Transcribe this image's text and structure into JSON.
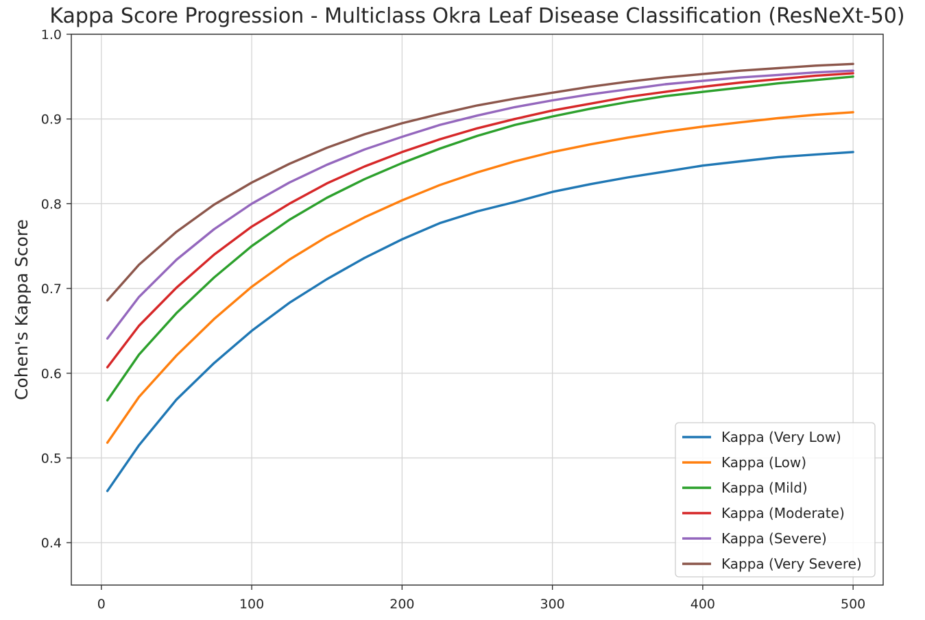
{
  "chart_data": {
    "type": "line",
    "title": "Kappa Score Progression - Multiclass Okra Leaf Disease Classification (ResNeXt-50)",
    "xlabel": "",
    "ylabel": "Cohen's Kappa Score",
    "xlim": [
      -20,
      520
    ],
    "ylim": [
      0.35,
      1.0
    ],
    "xticks": [
      0,
      100,
      200,
      300,
      400,
      500
    ],
    "xtick_labels": [
      "0",
      "100",
      "200",
      "300",
      "400",
      "500"
    ],
    "yticks": [
      0.4,
      0.5,
      0.6,
      0.7,
      0.8,
      0.9,
      1.0
    ],
    "ytick_labels": [
      "0.4",
      "0.5",
      "0.6",
      "0.7",
      "0.8",
      "0.9",
      "1.0"
    ],
    "grid": true,
    "legend_position": "lower-right",
    "x": [
      4,
      25,
      50,
      75,
      100,
      125,
      150,
      175,
      200,
      225,
      250,
      275,
      300,
      325,
      350,
      375,
      400,
      425,
      450,
      475,
      500
    ],
    "series": [
      {
        "name": "Kappa (Very Low)",
        "color": "#1f77b4",
        "values": [
          0.461,
          0.515,
          0.569,
          0.612,
          0.65,
          0.683,
          0.711,
          0.736,
          0.758,
          0.777,
          0.791,
          0.802,
          0.814,
          0.823,
          0.831,
          0.838,
          0.845,
          0.85,
          0.855,
          0.858,
          0.861
        ]
      },
      {
        "name": "Kappa (Low)",
        "color": "#ff7f0e",
        "values": [
          0.518,
          0.572,
          0.621,
          0.664,
          0.702,
          0.734,
          0.761,
          0.784,
          0.804,
          0.822,
          0.837,
          0.85,
          0.861,
          0.87,
          0.878,
          0.885,
          0.891,
          0.896,
          0.901,
          0.905,
          0.908
        ]
      },
      {
        "name": "Kappa (Mild)",
        "color": "#2ca02c",
        "values": [
          0.568,
          0.622,
          0.671,
          0.713,
          0.75,
          0.781,
          0.807,
          0.829,
          0.848,
          0.865,
          0.88,
          0.893,
          0.903,
          0.912,
          0.92,
          0.927,
          0.932,
          0.937,
          0.942,
          0.946,
          0.95
        ]
      },
      {
        "name": "Kappa (Moderate)",
        "color": "#d62728",
        "values": [
          0.607,
          0.656,
          0.701,
          0.74,
          0.773,
          0.8,
          0.824,
          0.844,
          0.861,
          0.876,
          0.889,
          0.9,
          0.91,
          0.918,
          0.926,
          0.932,
          0.938,
          0.943,
          0.947,
          0.951,
          0.954
        ]
      },
      {
        "name": "Kappa (Severe)",
        "color": "#9467bd",
        "values": [
          0.641,
          0.69,
          0.734,
          0.77,
          0.8,
          0.825,
          0.846,
          0.864,
          0.879,
          0.893,
          0.904,
          0.914,
          0.922,
          0.929,
          0.935,
          0.941,
          0.945,
          0.949,
          0.952,
          0.955,
          0.957
        ]
      },
      {
        "name": "Kappa (Very Severe)",
        "color": "#8c564b",
        "values": [
          0.686,
          0.728,
          0.767,
          0.799,
          0.825,
          0.847,
          0.866,
          0.882,
          0.895,
          0.906,
          0.916,
          0.924,
          0.931,
          0.938,
          0.944,
          0.949,
          0.953,
          0.957,
          0.96,
          0.963,
          0.965
        ]
      }
    ]
  }
}
